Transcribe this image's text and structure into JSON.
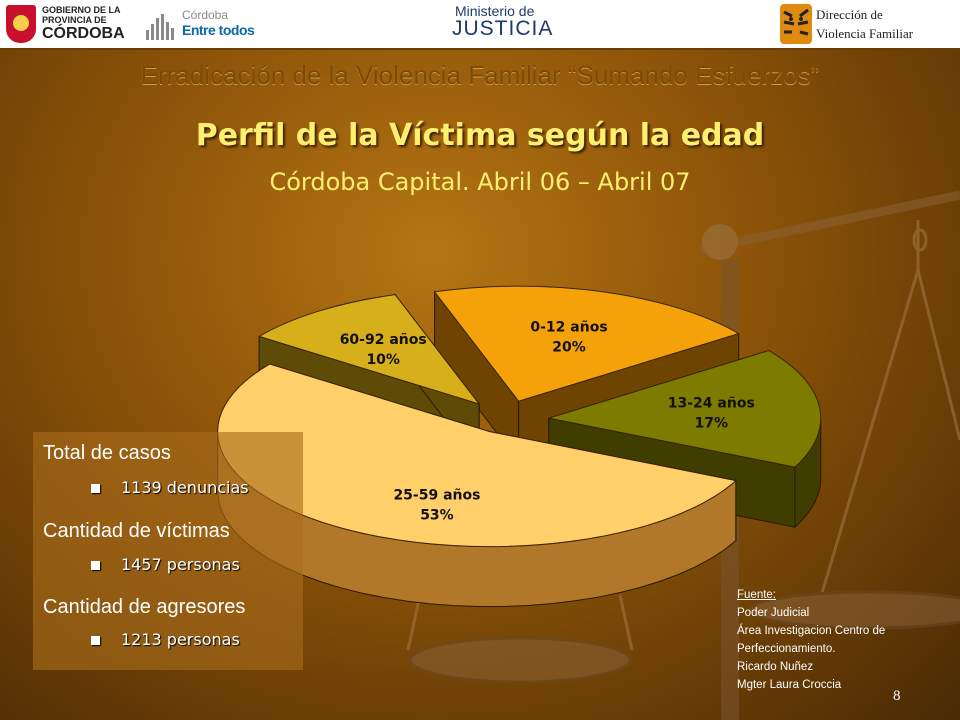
{
  "header": {
    "gob_line1": "GOBIERNO DE LA",
    "gob_line2": "PROVINCIA DE",
    "gob_line3": "CÓRDOBA",
    "cba_line1": "Córdoba",
    "cba_line2": "Entre todos",
    "min_line1": "Ministerio de",
    "min_line2": "JUSTICIA",
    "dvf_line1": "Dirección de",
    "dvf_line2": "Violencia Familiar"
  },
  "program_title": "Erradicación de la Violencia Familiar “Sumando Esfuerzos”",
  "slide_title": "Perfil de la Víctima según la edad",
  "slide_subtitle": "Córdoba Capital.  Abril 06 – Abril 07",
  "chart_data": {
    "type": "pie",
    "slices": [
      {
        "label": "0-12 años",
        "value": 20,
        "display": "20%",
        "color": "#f5a20a",
        "side_color": "#6e4400"
      },
      {
        "label": "13-24 años",
        "value": 17,
        "display": "17%",
        "color": "#7d7b00",
        "side_color": "#3f3d00"
      },
      {
        "label": "25-59 años",
        "value": 53,
        "display": "53%",
        "color": "#ffcf6a",
        "side_color": "#b07828"
      },
      {
        "label": "60-92 años",
        "value": 10,
        "display": "10%",
        "color": "#d6af1a",
        "side_color": "#5e4c06"
      }
    ]
  },
  "stats": {
    "total_label": "Total de casos",
    "total_value": "1139 denuncias",
    "victims_label": "Cantidad de víctimas",
    "victims_value": "1457 personas",
    "aggressors_label": "Cantidad de agresores",
    "aggressors_value": "1213 personas"
  },
  "source": {
    "heading": "Fuente:",
    "line1": "Poder Judicial",
    "line2": "Área Investigacion Centro de",
    "line3": "Perfeccionamiento.",
    "line4": "Ricardo Nuñez",
    "line5": "Mgter Laura Croccia"
  },
  "page_number": "8"
}
